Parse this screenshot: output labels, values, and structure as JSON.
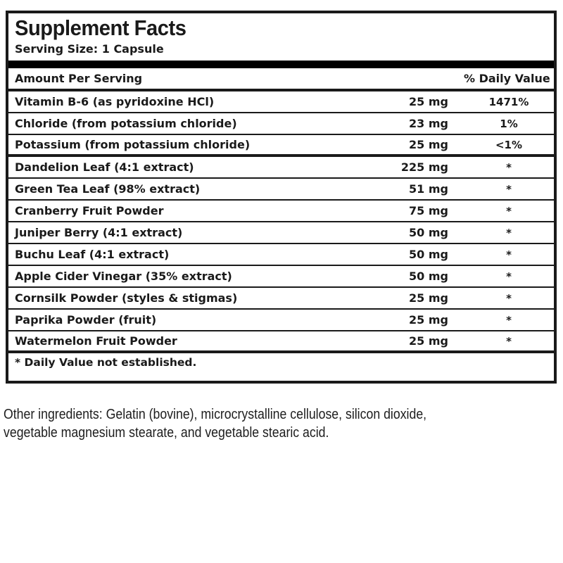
{
  "label": {
    "title": "Supplement Facts",
    "serving_size": "Serving Size: 1 Capsule",
    "columns": {
      "amount_header": "Amount Per Serving",
      "dv_header": "% Daily Value"
    },
    "rows": [
      {
        "name": "Vitamin B-6 (as pyridoxine HCl)",
        "amount": "25 mg",
        "dv": "1471%"
      },
      {
        "name": "Chloride (from potassium chloride)",
        "amount": "23 mg",
        "dv": "1%"
      },
      {
        "name": "Potassium (from potassium chloride)",
        "amount": "25 mg",
        "dv": "<1%"
      },
      {
        "name": "Dandelion Leaf (4:1 extract)",
        "amount": "225 mg",
        "dv": "*"
      },
      {
        "name": "Green Tea Leaf (98% extract)",
        "amount": "51 mg",
        "dv": "*"
      },
      {
        "name": "Cranberry Fruit Powder",
        "amount": "75 mg",
        "dv": "*"
      },
      {
        "name": "Juniper Berry (4:1 extract)",
        "amount": "50 mg",
        "dv": "*"
      },
      {
        "name": "Buchu Leaf (4:1 extract)",
        "amount": "50 mg",
        "dv": "*"
      },
      {
        "name": "Apple Cider Vinegar (35% extract)",
        "amount": "50 mg",
        "dv": "*"
      },
      {
        "name": "Cornsilk Powder (styles & stigmas)",
        "amount": "25 mg",
        "dv": "*"
      },
      {
        "name": "Paprika Powder (fruit)",
        "amount": "25 mg",
        "dv": "*"
      },
      {
        "name": "Watermelon Fruit Powder",
        "amount": "25 mg",
        "dv": "*"
      }
    ],
    "footnote": "* Daily Value not established.",
    "colors": {
      "border": "#1a1a1a",
      "text": "#1a1a1a",
      "background": "#ffffff"
    }
  },
  "other_ingredients": {
    "line1": "Other ingredients: Gelatin (bovine), microcrystalline cellulose, silicon dioxide,",
    "line2": "vegetable magnesium stearate, and vegetable stearic acid."
  }
}
